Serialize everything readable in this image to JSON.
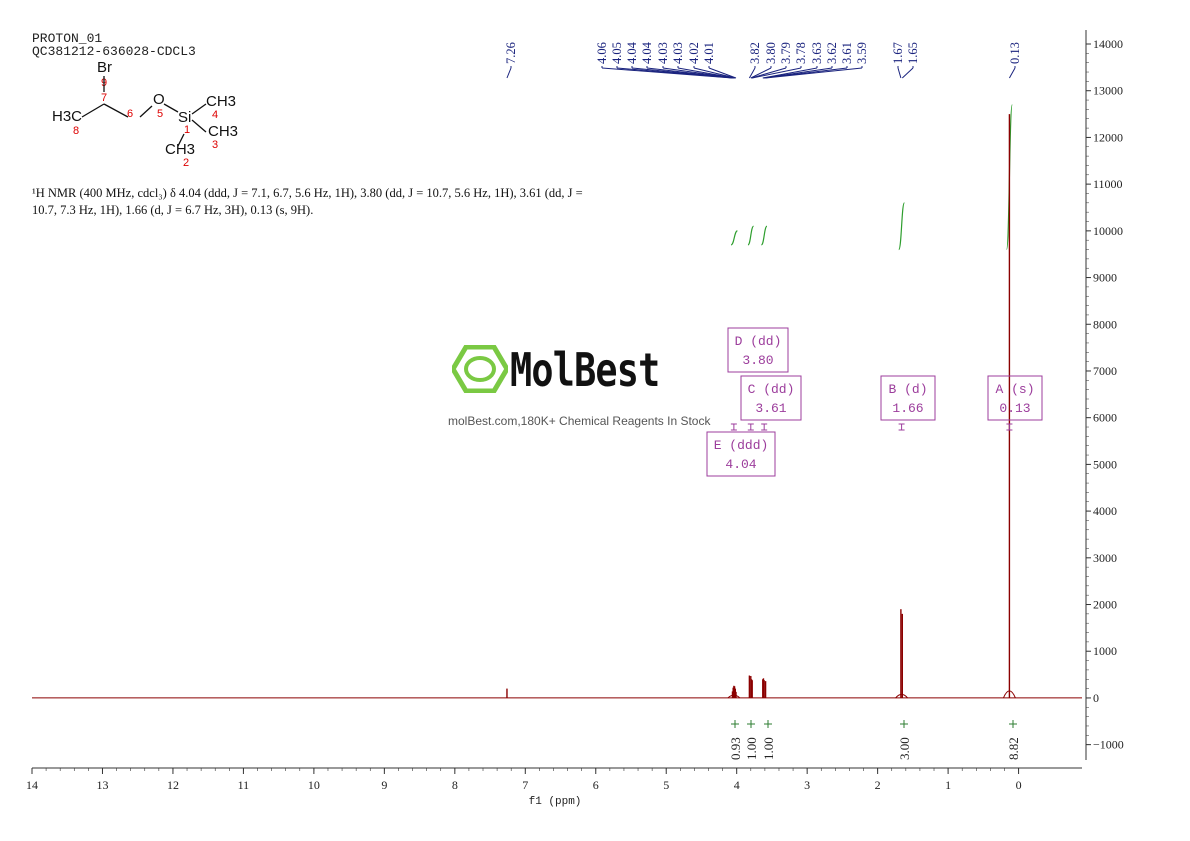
{
  "header": {
    "line1": "PROTON_01",
    "line2": "QC381212-636028-CDCL3"
  },
  "molecule": {
    "atoms": [
      {
        "id": "br",
        "label": "Br"
      },
      {
        "id": "n9",
        "label": "9"
      },
      {
        "id": "n7",
        "label": "7"
      },
      {
        "id": "h3c",
        "label": "H3C"
      },
      {
        "id": "n8",
        "label": "8"
      },
      {
        "id": "n6",
        "label": "6"
      },
      {
        "id": "o",
        "label": "O"
      },
      {
        "id": "n5",
        "label": "5"
      },
      {
        "id": "si",
        "label": "Si"
      },
      {
        "id": "n1",
        "label": "1"
      },
      {
        "id": "ch3a",
        "label": "CH3"
      },
      {
        "id": "n4",
        "label": "4"
      },
      {
        "id": "ch3b",
        "label": "CH3"
      },
      {
        "id": "n3",
        "label": "3"
      },
      {
        "id": "ch3c",
        "label": "CH3"
      },
      {
        "id": "n2",
        "label": "2"
      }
    ]
  },
  "nmr_description": "¹H NMR (400 MHz, cdcl₃) δ 4.04 (ddd, J = 7.1, 6.7, 5.6 Hz, 1H), 3.80 (dd, J = 10.7, 5.6 Hz, 1H), 3.61 (dd, J = 10.7, 7.3 Hz, 1H), 1.66 (d, J = 6.7 Hz, 3H), 0.13 (s, 9H).",
  "watermark": {
    "brand": "MolBest",
    "tagline": "molBest.com,180K+ Chemical Reagents In Stock"
  },
  "colors": {
    "spectrum": "#8b0000",
    "peak_labels": "#1a237e",
    "integral_curve": "#2e9e2e",
    "integral_marker": "#2e7d32",
    "multiplet_box": "#9c3d9c",
    "axis": "#333333",
    "logo_green": "#7ac943"
  },
  "chart_data": {
    "type": "line",
    "xlabel": "f1 (ppm)",
    "xlim": [
      14,
      -0.9
    ],
    "ylim": [
      -1500,
      14300
    ],
    "x_ticks": [
      "14",
      "13",
      "12",
      "11",
      "10",
      "9",
      "8",
      "7",
      "6",
      "5",
      "4",
      "3",
      "2",
      "1",
      "0"
    ],
    "x_tick_values": [
      14,
      13,
      12,
      11,
      10,
      9,
      8,
      7,
      6,
      5,
      4,
      3,
      2,
      1,
      0
    ],
    "y_ticks": [
      "14000",
      "13000",
      "12000",
      "11000",
      "10000",
      "9000",
      "8000",
      "7000",
      "6000",
      "5000",
      "4000",
      "3000",
      "2000",
      "1000",
      "0",
      "−1000"
    ],
    "y_tick_values": [
      14000,
      13000,
      12000,
      11000,
      10000,
      9000,
      8000,
      7000,
      6000,
      5000,
      4000,
      3000,
      2000,
      1000,
      0,
      -1000
    ],
    "peaks": [
      {
        "ppm": 7.26,
        "height": 200
      },
      {
        "ppm": 4.06,
        "height": 140
      },
      {
        "ppm": 4.05,
        "height": 220
      },
      {
        "ppm": 4.04,
        "height": 260
      },
      {
        "ppm": 4.03,
        "height": 250
      },
      {
        "ppm": 4.02,
        "height": 200
      },
      {
        "ppm": 4.01,
        "height": 130
      },
      {
        "ppm": 3.82,
        "height": 480
      },
      {
        "ppm": 3.8,
        "height": 470
      },
      {
        "ppm": 3.79,
        "height": 400
      },
      {
        "ppm": 3.78,
        "height": 380
      },
      {
        "ppm": 3.63,
        "height": 400
      },
      {
        "ppm": 3.62,
        "height": 420
      },
      {
        "ppm": 3.61,
        "height": 380
      },
      {
        "ppm": 3.59,
        "height": 360
      },
      {
        "ppm": 1.67,
        "height": 1900
      },
      {
        "ppm": 1.65,
        "height": 1800
      },
      {
        "ppm": 0.13,
        "height": 12500
      }
    ],
    "peak_labels": [
      {
        "ppm": 7.26,
        "label": "7.26"
      },
      {
        "ppm": 4.06,
        "label": "4.06"
      },
      {
        "ppm": 4.05,
        "label": "4.05"
      },
      {
        "ppm": 4.04,
        "label": "4.04"
      },
      {
        "ppm": 4.04,
        "label": "4.04"
      },
      {
        "ppm": 4.03,
        "label": "4.03"
      },
      {
        "ppm": 4.03,
        "label": "4.03"
      },
      {
        "ppm": 4.02,
        "label": "4.02"
      },
      {
        "ppm": 4.01,
        "label": "4.01"
      },
      {
        "ppm": 3.82,
        "label": "3.82"
      },
      {
        "ppm": 3.8,
        "label": "3.80"
      },
      {
        "ppm": 3.79,
        "label": "3.79"
      },
      {
        "ppm": 3.78,
        "label": "3.78"
      },
      {
        "ppm": 3.63,
        "label": "3.63"
      },
      {
        "ppm": 3.62,
        "label": "3.62"
      },
      {
        "ppm": 3.61,
        "label": "3.61"
      },
      {
        "ppm": 3.59,
        "label": "3.59"
      },
      {
        "ppm": 1.67,
        "label": "1.67"
      },
      {
        "ppm": 1.65,
        "label": "1.65"
      },
      {
        "ppm": 0.13,
        "label": "0.13"
      }
    ],
    "integrals": [
      {
        "ppm": 4.04,
        "value": "0.93",
        "from": 4.08,
        "to": 3.99,
        "curve_bottom": 9700,
        "curve_top": 10000
      },
      {
        "ppm": 3.8,
        "value": "1.00",
        "from": 3.84,
        "to": 3.76,
        "curve_bottom": 9700,
        "curve_top": 10100
      },
      {
        "ppm": 3.61,
        "value": "1.00",
        "from": 3.65,
        "to": 3.57,
        "curve_bottom": 9700,
        "curve_top": 10100
      },
      {
        "ppm": 1.66,
        "value": "3.00",
        "from": 1.7,
        "to": 1.62,
        "curve_bottom": 9600,
        "curve_top": 10600
      },
      {
        "ppm": 0.13,
        "value": "8.82",
        "from": 0.17,
        "to": 0.09,
        "curve_bottom": 9600,
        "curve_top": 12700
      }
    ],
    "multiplets": [
      {
        "id": "D",
        "type": "D (dd)",
        "shift": "3.80",
        "ppm": 3.8
      },
      {
        "id": "C",
        "type": "C (dd)",
        "shift": "3.61",
        "ppm": 3.61
      },
      {
        "id": "E",
        "type": "E (ddd)",
        "shift": "4.04",
        "ppm": 4.04
      },
      {
        "id": "B",
        "type": "B (d)",
        "shift": "1.66",
        "ppm": 1.66
      },
      {
        "id": "A",
        "type": "A (s)",
        "shift": "0.13",
        "ppm": 0.13
      }
    ]
  }
}
